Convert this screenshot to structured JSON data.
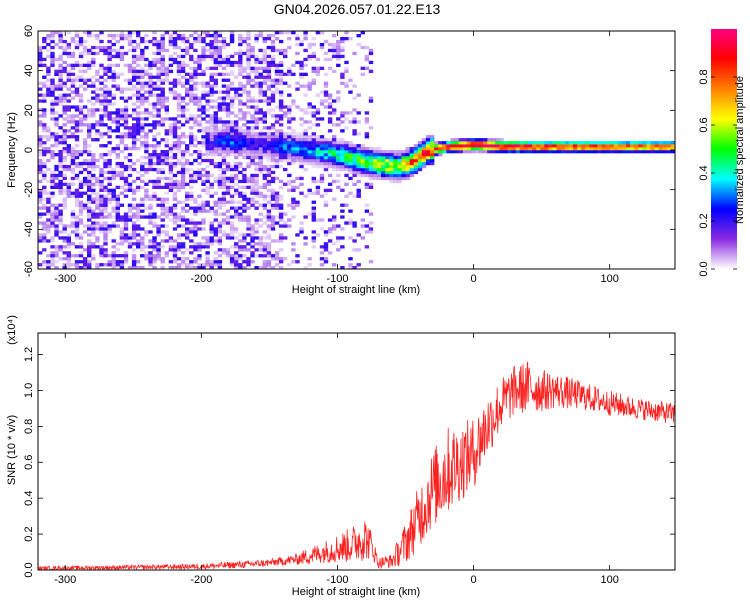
{
  "title": "GN04.2026.057.01.22.E13",
  "chart_data": [
    {
      "type": "heatmap",
      "xlabel": "Height of straight line (km)",
      "ylabel": "Frequency (Hz)",
      "xlim": [
        -320,
        148
      ],
      "ylim": [
        -60,
        60
      ],
      "x_ticks": [
        -300,
        -200,
        -100,
        0,
        100
      ],
      "y_ticks": [
        -60,
        -40,
        -20,
        0,
        20,
        40,
        60
      ],
      "colorbar": {
        "label": "Normalized spectral amplitude",
        "range": [
          0,
          1
        ],
        "ticks": [
          "0.0",
          "0.2",
          "0.4",
          "0.6",
          "0.8"
        ],
        "colors": [
          "#ffffff",
          "#8a2be2",
          "#0000ff",
          "#00ffff",
          "#00ff00",
          "#ffff00",
          "#ff8000",
          "#ff0000",
          "#ff0080"
        ]
      },
      "ridge": {
        "x": [
          -195,
          -180,
          -160,
          -140,
          -120,
          -100,
          -85,
          -70,
          -55,
          -45,
          -35,
          -20,
          0,
          20,
          40,
          60,
          80,
          100,
          120,
          148
        ],
        "freq_hz": [
          3,
          4,
          2,
          1,
          -1,
          -3,
          -6,
          -8,
          -9,
          -6,
          -1,
          1,
          2,
          1,
          1,
          1,
          1,
          1,
          1,
          1
        ],
        "amplitude": [
          0.22,
          0.3,
          0.2,
          0.3,
          0.35,
          0.45,
          0.55,
          0.6,
          0.7,
          0.8,
          0.9,
          0.95,
          1.0,
          0.95,
          0.92,
          0.88,
          0.86,
          0.84,
          0.82,
          0.82
        ]
      }
    },
    {
      "type": "line",
      "xlabel": "Height of straight line (km)",
      "ylabel": "SNR (10 * v/v)",
      "multiplier_label": "(x10⁴)",
      "xlim": [
        -320,
        148
      ],
      "ylim": [
        0,
        1.32
      ],
      "x_ticks": [
        -300,
        -200,
        -100,
        0,
        100
      ],
      "y_ticks": [
        0.0,
        0.2,
        0.4,
        0.6,
        0.8,
        1.0,
        1.2
      ],
      "series": [
        {
          "color": "#ff2020",
          "envelope_x": [
            -320,
            -250,
            -200,
            -170,
            -150,
            -130,
            -120,
            -110,
            -100,
            -90,
            -80,
            -75,
            -70,
            -60,
            -50,
            -40,
            -30,
            -20,
            -10,
            0,
            10,
            20,
            30,
            40,
            50,
            60,
            80,
            100,
            120,
            148
          ],
          "envelope_mid": [
            0.01,
            0.015,
            0.02,
            0.03,
            0.04,
            0.06,
            0.08,
            0.1,
            0.12,
            0.14,
            0.18,
            0.14,
            0.04,
            0.05,
            0.15,
            0.3,
            0.45,
            0.55,
            0.6,
            0.65,
            0.8,
            0.92,
            1.0,
            1.02,
            1.0,
            1.0,
            0.97,
            0.93,
            0.9,
            0.87
          ],
          "envelope_amp": [
            0.01,
            0.012,
            0.015,
            0.02,
            0.02,
            0.03,
            0.05,
            0.06,
            0.08,
            0.1,
            0.13,
            0.08,
            0.03,
            0.04,
            0.12,
            0.18,
            0.22,
            0.25,
            0.22,
            0.2,
            0.18,
            0.15,
            0.14,
            0.15,
            0.12,
            0.1,
            0.08,
            0.07,
            0.06,
            0.06
          ]
        }
      ]
    }
  ]
}
